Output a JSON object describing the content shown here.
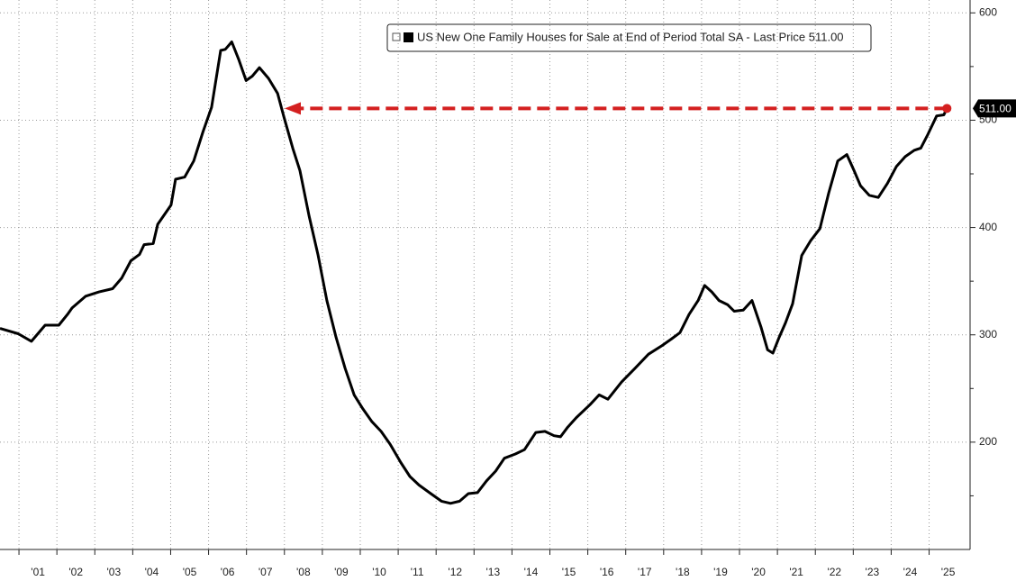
{
  "chart_data": {
    "type": "line",
    "x": [
      2000.5,
      2000.98,
      2001.33,
      2001.69,
      2002.05,
      2002.28,
      2002.4,
      2002.76,
      2003.11,
      2003.47,
      2003.71,
      2003.95,
      2004.18,
      2004.3,
      2004.54,
      2004.66,
      2005.01,
      2005.13,
      2005.37,
      2005.61,
      2005.85,
      2006.08,
      2006.32,
      2006.44,
      2006.61,
      2006.8,
      2006.99,
      2007.15,
      2007.34,
      2007.58,
      2007.82,
      2007.98,
      2008.22,
      2008.41,
      2008.65,
      2008.89,
      2009.12,
      2009.36,
      2009.6,
      2009.84,
      2010.07,
      2010.31,
      2010.55,
      2010.79,
      2011.07,
      2011.31,
      2011.55,
      2011.86,
      2012.14,
      2012.38,
      2012.62,
      2012.85,
      2013.09,
      2013.33,
      2013.57,
      2013.8,
      2014.09,
      2014.33,
      2014.63,
      2014.87,
      2015.11,
      2015.28,
      2015.47,
      2015.7,
      2016.06,
      2016.3,
      2016.53,
      2016.89,
      2017.25,
      2017.6,
      2017.96,
      2018.2,
      2018.43,
      2018.67,
      2018.91,
      2019.08,
      2019.27,
      2019.46,
      2019.69,
      2019.86,
      2020.1,
      2020.33,
      2020.57,
      2020.74,
      2020.88,
      2021.05,
      2021.21,
      2021.4,
      2021.64,
      2021.88,
      2022.12,
      2022.35,
      2022.59,
      2022.83,
      2023.02,
      2023.19,
      2023.42,
      2023.66,
      2023.9,
      2024.14,
      2024.37,
      2024.61,
      2024.78,
      2024.97,
      2025.2,
      2025.39,
      2025.47
    ],
    "series": [
      {
        "name": "US New One Family Houses for Sale at End of Period Total SA - Last Price 511.00",
        "color": "#000000",
        "values": [
          306,
          301,
          294,
          309,
          309,
          319,
          325,
          336,
          340,
          343,
          353,
          369,
          375,
          384,
          385,
          403,
          421,
          445,
          447,
          462,
          489,
          512,
          565,
          566,
          573,
          556,
          537,
          541,
          549,
          539,
          525,
          504,
          474,
          453,
          411,
          374,
          332,
          298,
          269,
          244,
          231,
          219,
          210,
          198,
          181,
          168,
          160,
          152,
          145,
          143,
          145,
          152,
          153,
          164,
          173,
          185,
          189,
          193,
          209,
          210,
          206,
          205,
          214,
          223,
          235,
          244,
          240,
          256,
          269,
          282,
          290,
          296,
          302,
          319,
          332,
          346,
          340,
          332,
          328,
          322,
          323,
          332,
          307,
          286,
          283,
          298,
          311,
          329,
          374,
          388,
          399,
          432,
          462,
          468,
          453,
          439,
          430,
          428,
          441,
          457,
          466,
          472,
          474,
          487,
          504,
          505,
          511
        ]
      }
    ],
    "last_label": "511.00",
    "annotation_color": "#d42020",
    "xlim": [
      2000.5,
      2026.08
    ],
    "xticks": [
      {
        "value": 2001,
        "label": "'01"
      },
      {
        "value": 2002,
        "label": "'02"
      },
      {
        "value": 2003,
        "label": "'03"
      },
      {
        "value": 2004,
        "label": "'04"
      },
      {
        "value": 2005,
        "label": "'05"
      },
      {
        "value": 2006,
        "label": "'06"
      },
      {
        "value": 2007,
        "label": "'07"
      },
      {
        "value": 2008,
        "label": "'08"
      },
      {
        "value": 2009,
        "label": "'09"
      },
      {
        "value": 2010,
        "label": "'10"
      },
      {
        "value": 2011,
        "label": "'11"
      },
      {
        "value": 2012,
        "label": "'12"
      },
      {
        "value": 2013,
        "label": "'13"
      },
      {
        "value": 2014,
        "label": "'14"
      },
      {
        "value": 2015,
        "label": "'15"
      },
      {
        "value": 2016,
        "label": "'16"
      },
      {
        "value": 2017,
        "label": "'17"
      },
      {
        "value": 2018,
        "label": "'18"
      },
      {
        "value": 2019,
        "label": "'19"
      },
      {
        "value": 2020,
        "label": "'20"
      },
      {
        "value": 2021,
        "label": "'21"
      },
      {
        "value": 2022,
        "label": "'22"
      },
      {
        "value": 2023,
        "label": "'23"
      },
      {
        "value": 2024,
        "label": "'24"
      },
      {
        "value": 2025,
        "label": "'25"
      }
    ],
    "ylim": [
      100,
      612
    ],
    "yticks": [
      200,
      300,
      400,
      500,
      600
    ],
    "yticks_minor": [
      150,
      250,
      350,
      450,
      550
    ],
    "grid": true
  }
}
